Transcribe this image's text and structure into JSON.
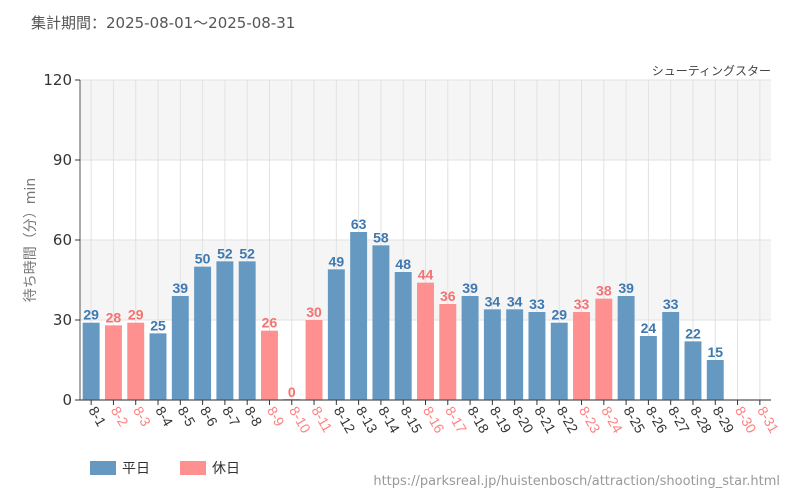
{
  "header": {
    "period": "集計期間：2025-08-01～2025-08-31",
    "attraction": "シューティングスター"
  },
  "footer": {
    "url": "https://parksreal.jp/huistenbosch/attraction/shooting_star.html"
  },
  "colors": {
    "weekday": "#6699c2",
    "holiday": "#ff9090",
    "weekday_label": "#3d78b0",
    "holiday_label": "#f47272",
    "weekday_tick": "#333333",
    "holiday_tick": "#ff8080"
  },
  "chart_data": {
    "type": "bar",
    "title": "",
    "xlabel": "",
    "ylabel": "待ち時間（分）min",
    "ylim": [
      0,
      120
    ],
    "yticks": [
      0,
      30,
      60,
      90,
      120
    ],
    "grid": true,
    "legend_position": "bottom-left",
    "legend": [
      {
        "name": "平日",
        "key": "weekday"
      },
      {
        "name": "休日",
        "key": "holiday"
      }
    ],
    "categories": [
      "8-1",
      "8-2",
      "8-3",
      "8-4",
      "8-5",
      "8-6",
      "8-7",
      "8-8",
      "8-9",
      "8-10",
      "8-11",
      "8-12",
      "8-13",
      "8-14",
      "8-15",
      "8-16",
      "8-17",
      "8-18",
      "8-19",
      "8-20",
      "8-21",
      "8-22",
      "8-23",
      "8-24",
      "8-25",
      "8-26",
      "8-27",
      "8-28",
      "8-29",
      "8-30",
      "8-31"
    ],
    "values": [
      29,
      28,
      29,
      25,
      39,
      50,
      52,
      52,
      26,
      0,
      30,
      49,
      63,
      58,
      48,
      44,
      36,
      39,
      34,
      34,
      33,
      29,
      33,
      38,
      39,
      24,
      33,
      22,
      15,
      null,
      null
    ],
    "day_type": [
      "weekday",
      "holiday",
      "holiday",
      "weekday",
      "weekday",
      "weekday",
      "weekday",
      "weekday",
      "holiday",
      "holiday",
      "holiday",
      "weekday",
      "weekday",
      "weekday",
      "weekday",
      "holiday",
      "holiday",
      "weekday",
      "weekday",
      "weekday",
      "weekday",
      "weekday",
      "holiday",
      "holiday",
      "weekday",
      "weekday",
      "weekday",
      "weekday",
      "weekday",
      "holiday",
      "holiday"
    ]
  }
}
